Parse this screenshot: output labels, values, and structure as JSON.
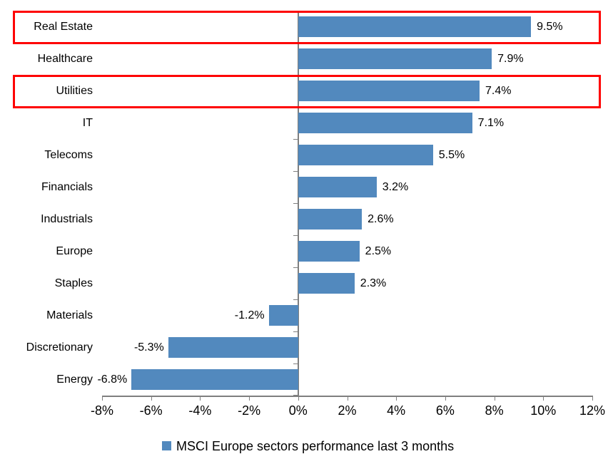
{
  "chart_data": {
    "type": "bar",
    "orientation": "horizontal",
    "categories": [
      "Real Estate",
      "Healthcare",
      "Utilities",
      "IT",
      "Telecoms",
      "Financials",
      "Industrials",
      "Europe",
      "Staples",
      "Materials",
      "Discretionary",
      "Energy"
    ],
    "values": [
      9.5,
      7.9,
      7.4,
      7.1,
      5.5,
      3.2,
      2.6,
      2.5,
      2.3,
      -1.2,
      -5.3,
      -6.8
    ],
    "value_labels": [
      "9.5%",
      "7.9%",
      "7.4%",
      "7.1%",
      "5.5%",
      "3.2%",
      "2.6%",
      "2.5%",
      "2.3%",
      "-1.2%",
      "-5.3%",
      "-6.8%"
    ],
    "x_axis": {
      "min": -8,
      "max": 12,
      "tick_step": 2,
      "tick_labels": [
        "-8%",
        "-6%",
        "-4%",
        "-2%",
        "0%",
        "2%",
        "4%",
        "6%",
        "8%",
        "10%",
        "12%"
      ]
    },
    "legend": {
      "label": "MSCI Europe sectors performance last 3 months",
      "position": "bottom"
    },
    "highlighted_categories": [
      "Real Estate",
      "Utilities"
    ],
    "colors": {
      "bar": "#5289BE",
      "highlight_border": "#FE0000",
      "axis": "#7F7F7F",
      "text": "#000000"
    },
    "grid": false,
    "title": ""
  }
}
